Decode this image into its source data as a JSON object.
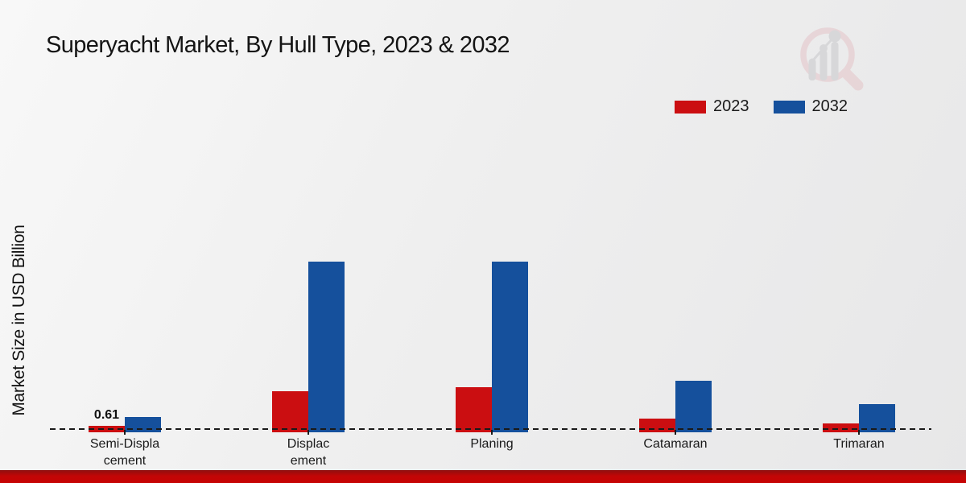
{
  "title": "Superyacht Market, By Hull Type, 2023 & 2032",
  "y_axis_label": "Market Size in USD Billion",
  "legend": {
    "position": "top-right",
    "items": [
      {
        "label": "2023",
        "color": "#cb0e11"
      },
      {
        "label": "2032",
        "color": "#15509c"
      }
    ]
  },
  "colors": {
    "series_2023": "#cb0e11",
    "series_2032": "#15509c",
    "baseline": "#1a1a1a",
    "bottom_stripe": "#c10606",
    "background": "#efefef"
  },
  "watermark": {
    "icon": "magnifier-bar-chart-logo"
  },
  "chart_data": {
    "type": "bar",
    "categories": [
      "Semi-Displacement",
      "Displacement",
      "Planing",
      "Catamaran",
      "Trimaran"
    ],
    "category_display_labels": [
      "Semi-Displa\ncement",
      "Displac\nement",
      "Planing",
      "Catamaran",
      "Trimaran"
    ],
    "series": [
      {
        "name": "2023",
        "color": "#cb0e11",
        "values": [
          0.61,
          7.2,
          7.9,
          2.0,
          1.05
        ]
      },
      {
        "name": "2032",
        "color": "#15509c",
        "values": [
          2.3,
          31.7,
          31.7,
          9.1,
          4.7
        ]
      }
    ],
    "annotations": [
      {
        "text": "0.61",
        "category_index": 0,
        "series_index": 0
      }
    ],
    "title": "Superyacht Market, By Hull Type, 2023 & 2032",
    "xlabel": "",
    "ylabel": "Market Size in USD Billion",
    "ylim": [
      0,
      35
    ],
    "grid": false,
    "axis_line_style": "dashed",
    "legend_position": "top-right"
  }
}
